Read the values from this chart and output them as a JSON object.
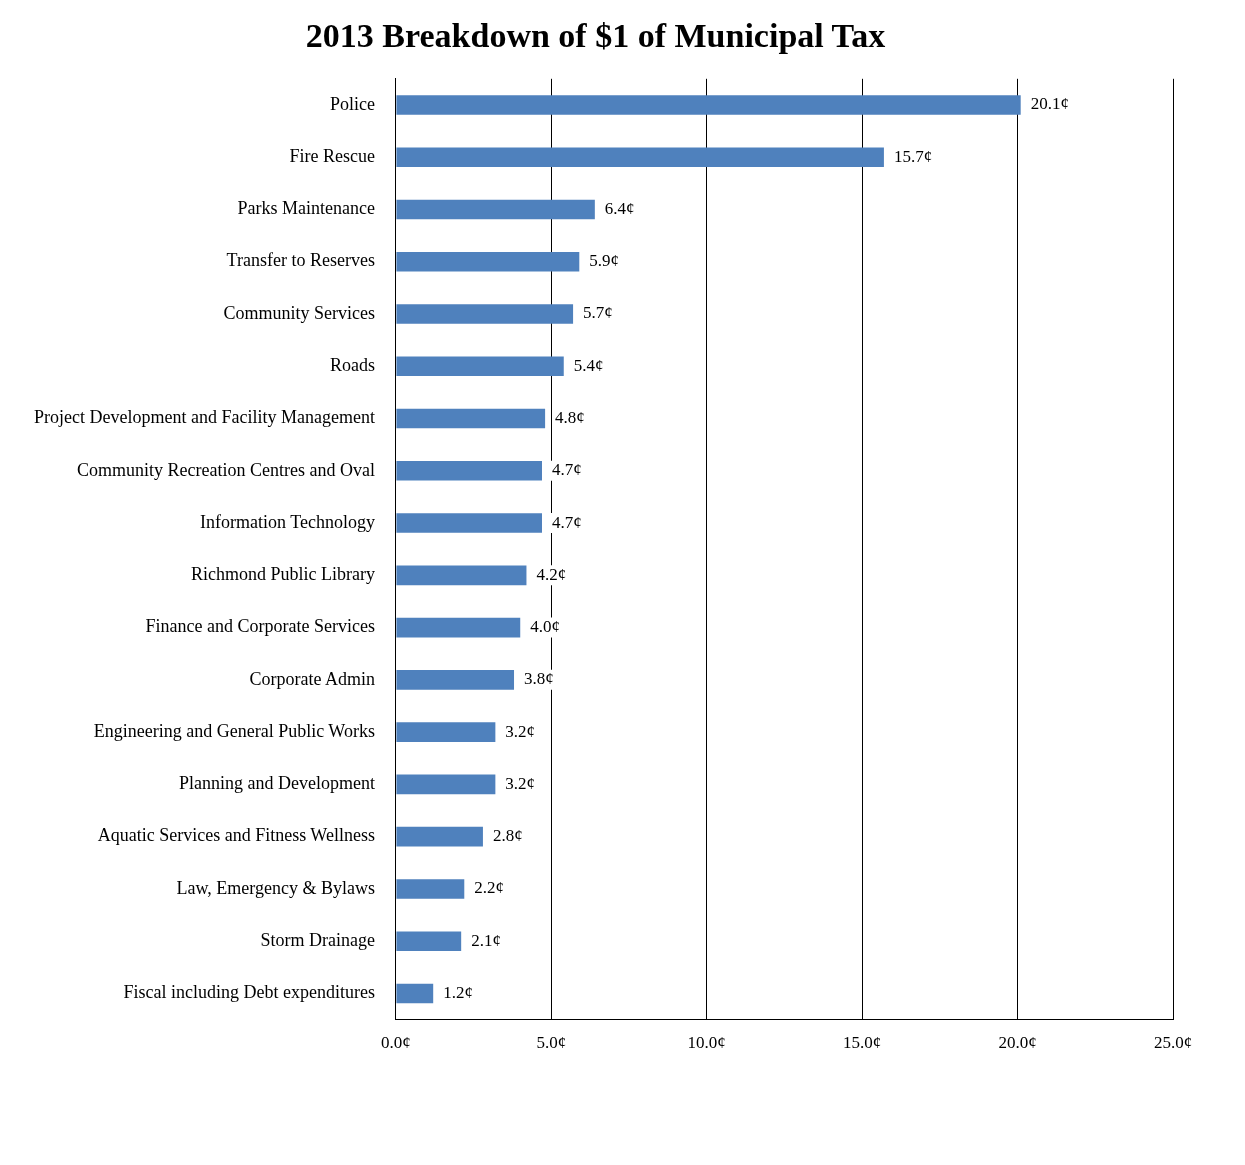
{
  "chart_data": {
    "type": "bar",
    "title": "2013 Breakdown of $1 of Municipal Tax",
    "orientation": "horizontal",
    "categories": [
      "Police",
      "Fire Rescue",
      "Parks Maintenance",
      "Transfer to Reserves",
      "Community Services",
      "Roads",
      "Project Development and Facility Management",
      "Community Recreation Centres and Oval",
      "Information Technology",
      "Richmond Public Library",
      "Finance and Corporate Services",
      "Corporate Admin",
      "Engineering and General Public Works",
      "Planning and Development",
      "Aquatic Services and Fitness Wellness",
      "Law, Emergency & Bylaws",
      "Storm Drainage",
      "Fiscal including Debt expenditures"
    ],
    "values": [
      20.1,
      15.7,
      6.4,
      5.9,
      5.7,
      5.4,
      4.8,
      4.7,
      4.7,
      4.2,
      4.0,
      3.8,
      3.2,
      3.2,
      2.8,
      2.2,
      2.1,
      1.2
    ],
    "value_labels": [
      "20.1¢",
      "15.7¢",
      "6.4¢",
      "5.9¢",
      "5.7¢",
      "5.4¢",
      "4.8¢",
      "4.7¢",
      "4.7¢",
      "4.2¢",
      "4.0¢",
      "3.8¢",
      "3.2¢",
      "3.2¢",
      "2.8¢",
      "2.2¢",
      "2.1¢",
      "1.2¢"
    ],
    "color": "#4f81bd",
    "xlim": [
      0,
      25
    ],
    "xticks": [
      {
        "value": 0,
        "label": "0.0¢"
      },
      {
        "value": 5,
        "label": "5.0¢"
      },
      {
        "value": 10,
        "label": "10.0¢"
      },
      {
        "value": 15,
        "label": "15.0¢"
      },
      {
        "value": 20,
        "label": "20.0¢"
      },
      {
        "value": 25,
        "label": "25.0¢"
      }
    ],
    "grid": "x"
  }
}
